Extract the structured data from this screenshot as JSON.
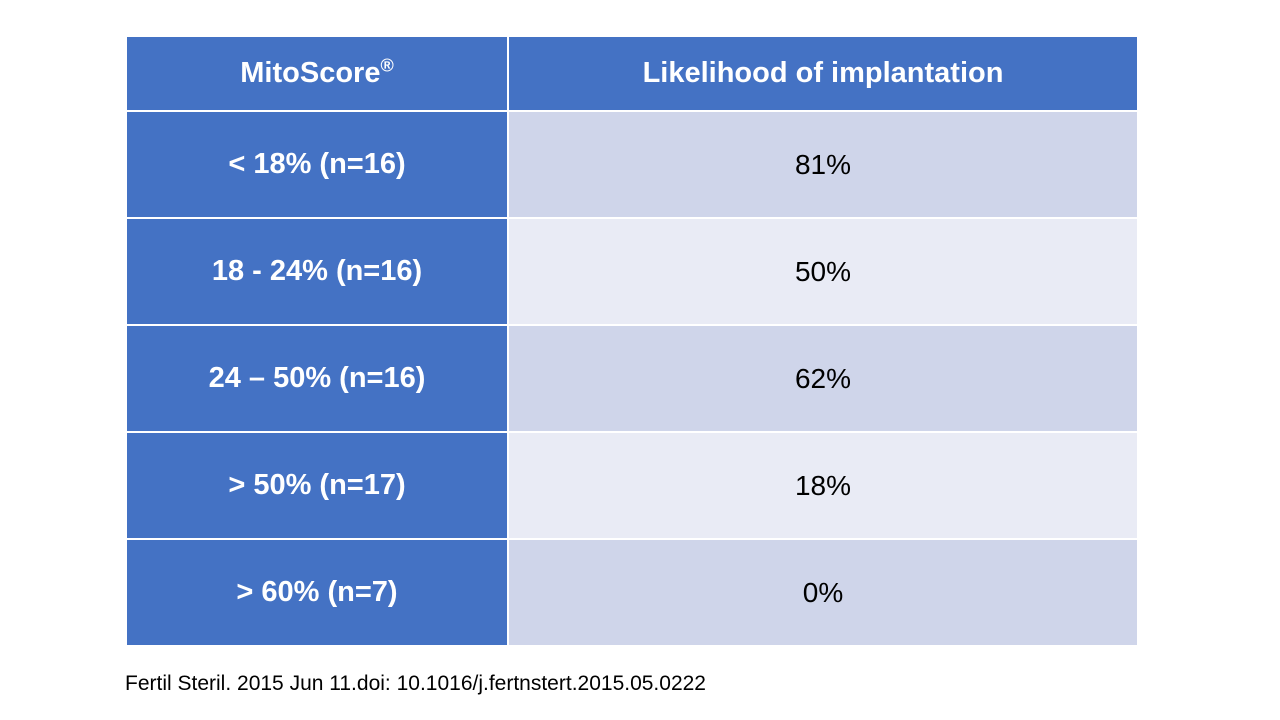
{
  "table": {
    "headers": [
      {
        "label": "MitoScore",
        "mark": "®"
      },
      {
        "label": "Likelihood of implantation",
        "mark": ""
      }
    ],
    "rows": [
      {
        "score": "< 18% (n=16)",
        "likelihood": "81%"
      },
      {
        "score": "18 - 24% (n=16)",
        "likelihood": "50%"
      },
      {
        "score": "24 – 50% (n=16)",
        "likelihood": "62%"
      },
      {
        "score": "> 50% (n=17)",
        "likelihood": "18%"
      },
      {
        "score": "> 60% (n=7)",
        "likelihood": "0%"
      }
    ]
  },
  "citation": "Fertil Steril. 2015 Jun 11.doi: 10.1016/j.fertnstert.2015.05.0222",
  "colors": {
    "header_blue": "#4472c4",
    "band_dark": "#cfd5ea",
    "band_light": "#e9ebf5",
    "header_text": "#ffffff",
    "value_text": "#000000"
  },
  "chart_data": {
    "type": "table",
    "columns": [
      "MitoScore®",
      "Likelihood of implantation"
    ],
    "rows": [
      [
        "< 18% (n=16)",
        "81%"
      ],
      [
        "18 - 24% (n=16)",
        "50%"
      ],
      [
        "24 – 50% (n=16)",
        "62%"
      ],
      [
        "> 50% (n=17)",
        "18%"
      ],
      [
        "> 60% (n=7)",
        "0%"
      ]
    ],
    "likelihood_percent": [
      81,
      50,
      62,
      18,
      0
    ],
    "n_per_group": [
      16,
      16,
      16,
      17,
      7
    ]
  }
}
